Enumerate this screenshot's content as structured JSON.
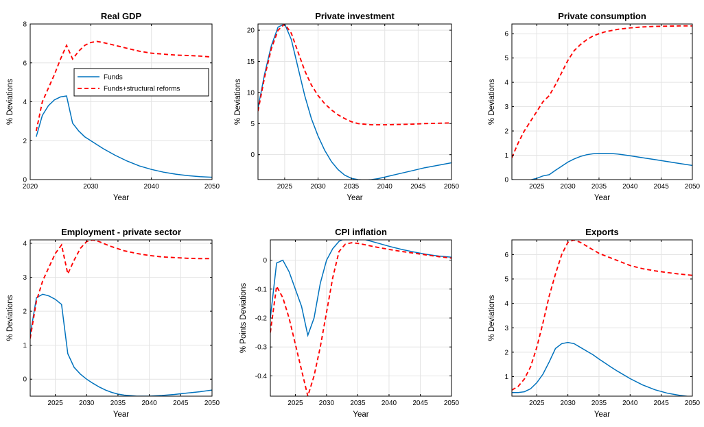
{
  "legend": {
    "position": "inside top-right of first panel",
    "entries": [
      "Funds",
      "Funds+structural reforms"
    ]
  },
  "colors": {
    "funds": "#0072BD",
    "reforms": "#FF0000",
    "grid": "#e3e3e3",
    "axes": "#000000"
  },
  "chart_data": [
    {
      "type": "line",
      "title": "Real GDP",
      "xlabel": "Year",
      "ylabel": "% Deviations",
      "xlim": [
        2020,
        2050
      ],
      "ylim": [
        0,
        8
      ],
      "xticks": [
        2020,
        2030,
        2040,
        2050
      ],
      "yticks": [
        0,
        2,
        4,
        6,
        8
      ],
      "grid": true,
      "legend": true,
      "series": [
        {
          "name": "Funds",
          "style": "solid",
          "x": [
            2021,
            2022,
            2023,
            2024,
            2025,
            2026,
            2027,
            2028,
            2029,
            2030,
            2032,
            2034,
            2036,
            2038,
            2040,
            2042,
            2044,
            2046,
            2048,
            2050
          ],
          "y": [
            2.2,
            3.3,
            3.8,
            4.1,
            4.25,
            4.3,
            2.9,
            2.5,
            2.2,
            2.0,
            1.6,
            1.25,
            0.95,
            0.7,
            0.52,
            0.38,
            0.28,
            0.2,
            0.15,
            0.12
          ]
        },
        {
          "name": "Funds+structural reforms",
          "style": "dashed",
          "x": [
            2021,
            2022,
            2023,
            2024,
            2025,
            2026,
            2027,
            2028,
            2029,
            2030,
            2031,
            2032,
            2034,
            2036,
            2038,
            2040,
            2042,
            2044,
            2046,
            2048,
            2050
          ],
          "y": [
            2.5,
            4.0,
            4.7,
            5.4,
            6.2,
            6.9,
            6.2,
            6.6,
            6.9,
            7.05,
            7.1,
            7.05,
            6.9,
            6.75,
            6.6,
            6.5,
            6.45,
            6.4,
            6.38,
            6.35,
            6.3
          ]
        }
      ]
    },
    {
      "type": "line",
      "title": "Private investment",
      "xlabel": "Year",
      "ylabel": "% Deviations",
      "xlim": [
        2021,
        2050
      ],
      "ylim": [
        -4,
        21
      ],
      "xticks": [
        2025,
        2030,
        2035,
        2040,
        2045,
        2050
      ],
      "yticks": [
        0,
        5,
        10,
        15,
        20
      ],
      "grid": true,
      "series": [
        {
          "name": "Funds",
          "style": "solid",
          "x": [
            2021,
            2022,
            2023,
            2024,
            2025,
            2026,
            2027,
            2028,
            2029,
            2030,
            2031,
            2032,
            2033,
            2034,
            2035,
            2036,
            2037,
            2038,
            2039,
            2040,
            2042,
            2044,
            2046,
            2048,
            2050
          ],
          "y": [
            7.5,
            13,
            17.5,
            20.5,
            21,
            18.5,
            14,
            9.5,
            5.8,
            3,
            0.7,
            -1.1,
            -2.4,
            -3.3,
            -3.8,
            -4,
            -4.05,
            -4,
            -3.85,
            -3.6,
            -3.1,
            -2.6,
            -2.1,
            -1.7,
            -1.3
          ]
        },
        {
          "name": "Funds+structural reforms",
          "style": "dashed",
          "x": [
            2021,
            2022,
            2023,
            2024,
            2025,
            2026,
            2027,
            2028,
            2029,
            2030,
            2031,
            2032,
            2033,
            2034,
            2035,
            2036,
            2038,
            2040,
            2042,
            2044,
            2046,
            2048,
            2050
          ],
          "y": [
            7,
            12.5,
            17,
            20,
            21,
            19.5,
            16.5,
            13.5,
            11.2,
            9.5,
            8.2,
            7.2,
            6.4,
            5.8,
            5.3,
            5.0,
            4.8,
            4.8,
            4.85,
            4.9,
            5.0,
            5.05,
            5.1
          ]
        }
      ]
    },
    {
      "type": "line",
      "title": "Private consumption",
      "xlabel": "Year",
      "ylabel": "% Deviations",
      "xlim": [
        2021,
        2050
      ],
      "ylim": [
        0,
        6.4
      ],
      "xticks": [
        2025,
        2030,
        2035,
        2040,
        2045,
        2050
      ],
      "yticks": [
        0,
        1,
        2,
        3,
        4,
        5,
        6
      ],
      "grid": true,
      "series": [
        {
          "name": "Funds",
          "style": "solid",
          "x": [
            2021,
            2022,
            2023,
            2024,
            2025,
            2026,
            2027,
            2028,
            2029,
            2030,
            2031,
            2032,
            2033,
            2034,
            2035,
            2036,
            2037,
            2038,
            2040,
            2042,
            2044,
            2046,
            2048,
            2050
          ],
          "y": [
            0,
            -0.02,
            -0.03,
            -0.01,
            0.05,
            0.15,
            0.2,
            0.38,
            0.55,
            0.72,
            0.85,
            0.95,
            1.02,
            1.06,
            1.08,
            1.08,
            1.07,
            1.05,
            0.98,
            0.9,
            0.82,
            0.74,
            0.66,
            0.58
          ]
        },
        {
          "name": "Funds+structural reforms",
          "style": "dashed",
          "x": [
            2021,
            2022,
            2023,
            2024,
            2025,
            2026,
            2027,
            2028,
            2029,
            2030,
            2031,
            2032,
            2033,
            2034,
            2035,
            2036,
            2038,
            2040,
            2042,
            2044,
            2046,
            2048,
            2050
          ],
          "y": [
            0.9,
            1.5,
            2.0,
            2.4,
            2.8,
            3.2,
            3.45,
            3.9,
            4.4,
            4.9,
            5.3,
            5.55,
            5.75,
            5.9,
            6.0,
            6.08,
            6.18,
            6.24,
            6.28,
            6.3,
            6.31,
            6.32,
            6.32
          ]
        }
      ]
    },
    {
      "type": "line",
      "title": "Employment - private sector",
      "xlabel": "Year",
      "ylabel": "% Deviations",
      "xlim": [
        2021,
        2050
      ],
      "ylim": [
        -0.5,
        4.1
      ],
      "xticks": [
        2025,
        2030,
        2035,
        2040,
        2045,
        2050
      ],
      "yticks": [
        0,
        1,
        2,
        3,
        4
      ],
      "grid": true,
      "series": [
        {
          "name": "Funds",
          "style": "solid",
          "x": [
            2021,
            2022,
            2023,
            2024,
            2025,
            2026,
            2027,
            2028,
            2029,
            2030,
            2031,
            2032,
            2033,
            2034,
            2035,
            2036,
            2038,
            2040,
            2042,
            2044,
            2046,
            2048,
            2050
          ],
          "y": [
            1.3,
            2.4,
            2.5,
            2.45,
            2.35,
            2.2,
            0.75,
            0.35,
            0.15,
            0.0,
            -0.12,
            -0.23,
            -0.32,
            -0.39,
            -0.44,
            -0.47,
            -0.5,
            -0.5,
            -0.48,
            -0.45,
            -0.41,
            -0.37,
            -0.32
          ]
        },
        {
          "name": "Funds+structural reforms",
          "style": "dashed",
          "x": [
            2021,
            2022,
            2023,
            2024,
            2025,
            2026,
            2027,
            2028,
            2029,
            2030,
            2031,
            2032,
            2033,
            2034,
            2035,
            2036,
            2038,
            2040,
            2042,
            2044,
            2046,
            2048,
            2050
          ],
          "y": [
            1.2,
            2.3,
            2.9,
            3.3,
            3.7,
            3.95,
            3.1,
            3.5,
            3.85,
            4.05,
            4.1,
            4.05,
            3.97,
            3.9,
            3.84,
            3.78,
            3.7,
            3.64,
            3.6,
            3.58,
            3.56,
            3.55,
            3.55
          ]
        }
      ]
    },
    {
      "type": "line",
      "title": "CPI inflation",
      "xlabel": "Year",
      "ylabel": "% Points Deviations",
      "xlim": [
        2021,
        2050
      ],
      "ylim": [
        -0.47,
        0.07
      ],
      "xticks": [
        2025,
        2030,
        2035,
        2040,
        2045,
        2050
      ],
      "yticks": [
        -0.4,
        -0.3,
        -0.2,
        -0.1,
        0
      ],
      "grid": true,
      "series": [
        {
          "name": "Funds",
          "style": "solid",
          "x": [
            2021,
            2022,
            2023,
            2024,
            2025,
            2026,
            2027,
            2028,
            2029,
            2030,
            2031,
            2032,
            2033,
            2034,
            2035,
            2036,
            2038,
            2040,
            2042,
            2044,
            2046,
            2048,
            2050
          ],
          "y": [
            -0.2,
            -0.01,
            0.0,
            -0.04,
            -0.1,
            -0.16,
            -0.26,
            -0.2,
            -0.08,
            0.0,
            0.04,
            0.065,
            0.075,
            0.078,
            0.076,
            0.072,
            0.06,
            0.048,
            0.037,
            0.028,
            0.02,
            0.014,
            0.01
          ]
        },
        {
          "name": "Funds+structural reforms",
          "style": "dashed",
          "x": [
            2021,
            2022,
            2023,
            2024,
            2025,
            2026,
            2027,
            2028,
            2029,
            2030,
            2031,
            2032,
            2033,
            2034,
            2035,
            2036,
            2038,
            2040,
            2042,
            2044,
            2046,
            2048,
            2050
          ],
          "y": [
            -0.25,
            -0.09,
            -0.13,
            -0.2,
            -0.29,
            -0.38,
            -0.47,
            -0.4,
            -0.3,
            -0.18,
            -0.06,
            0.03,
            0.055,
            0.06,
            0.058,
            0.054,
            0.045,
            0.037,
            0.03,
            0.024,
            0.018,
            0.012,
            0.007
          ]
        }
      ]
    },
    {
      "type": "line",
      "title": "Exports",
      "xlabel": "Year",
      "ylabel": "% Deviations",
      "xlim": [
        2021,
        2050
      ],
      "ylim": [
        0.2,
        6.6
      ],
      "xticks": [
        2025,
        2030,
        2035,
        2040,
        2045,
        2050
      ],
      "yticks": [
        1,
        2,
        3,
        4,
        5,
        6
      ],
      "grid": true,
      "series": [
        {
          "name": "Funds",
          "style": "solid",
          "x": [
            2021,
            2022,
            2023,
            2024,
            2025,
            2026,
            2027,
            2028,
            2029,
            2030,
            2031,
            2032,
            2033,
            2034,
            2035,
            2036,
            2037,
            2038,
            2040,
            2042,
            2044,
            2046,
            2048,
            2050
          ],
          "y": [
            0.35,
            0.35,
            0.38,
            0.5,
            0.75,
            1.1,
            1.6,
            2.15,
            2.35,
            2.4,
            2.35,
            2.2,
            2.05,
            1.9,
            1.72,
            1.55,
            1.38,
            1.22,
            0.92,
            0.66,
            0.46,
            0.32,
            0.23,
            0.17
          ]
        },
        {
          "name": "Funds+structural reforms",
          "style": "dashed",
          "x": [
            2021,
            2022,
            2023,
            2024,
            2025,
            2026,
            2027,
            2028,
            2029,
            2030,
            2031,
            2032,
            2033,
            2034,
            2035,
            2036,
            2038,
            2040,
            2042,
            2044,
            2046,
            2048,
            2050
          ],
          "y": [
            0.45,
            0.6,
            0.9,
            1.4,
            2.2,
            3.2,
            4.3,
            5.2,
            6.0,
            6.5,
            6.6,
            6.5,
            6.35,
            6.2,
            6.05,
            5.95,
            5.75,
            5.55,
            5.42,
            5.33,
            5.26,
            5.2,
            5.15
          ]
        }
      ]
    }
  ]
}
